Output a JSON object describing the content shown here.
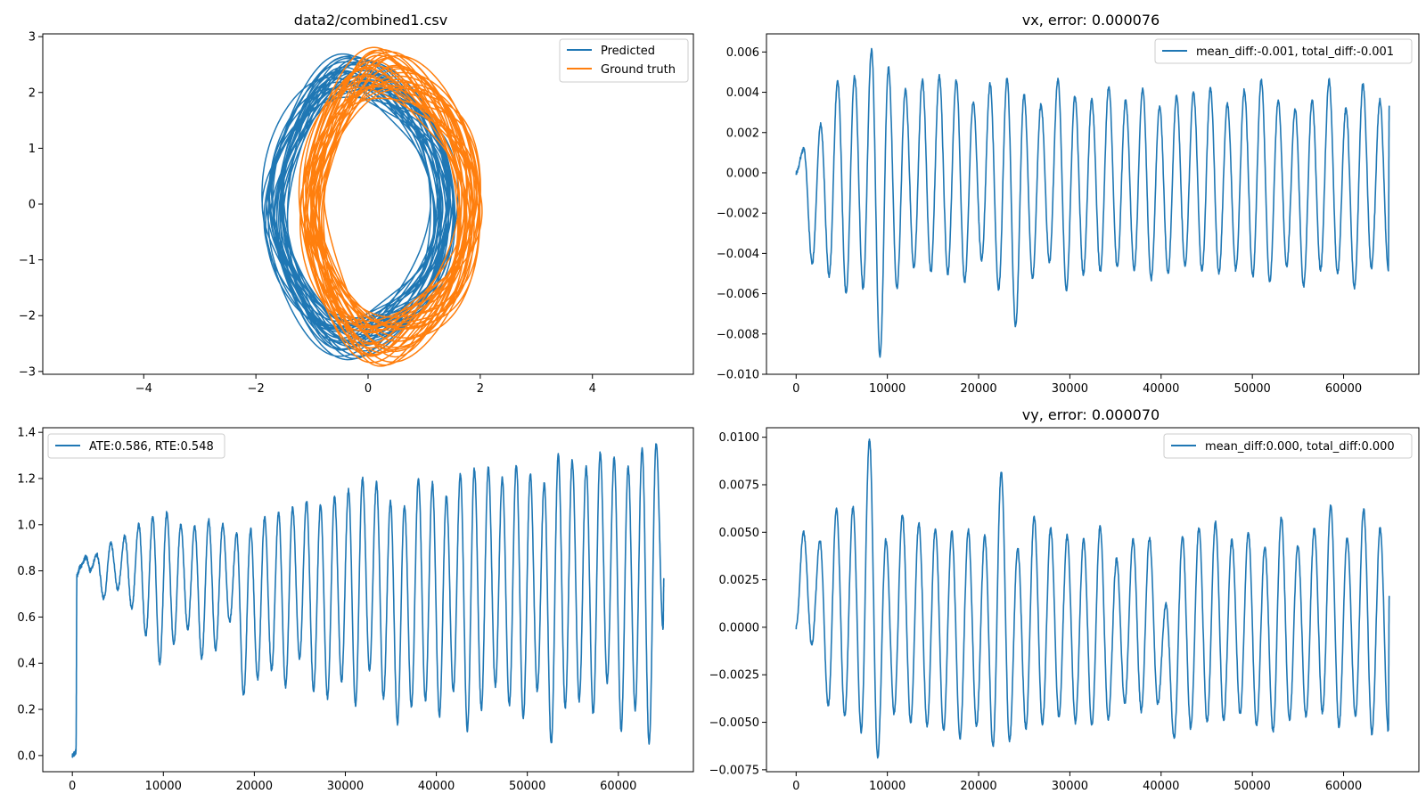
{
  "colors": {
    "blue": "#1f77b4",
    "orange": "#ff7f0e"
  },
  "chart_data": [
    {
      "type": "line",
      "title": "data2/combined1.csv",
      "xlim": [
        -5.8,
        5.8
      ],
      "ylim": [
        -3.05,
        3.05
      ],
      "xticks": [
        -4,
        -2,
        0,
        2,
        4
      ],
      "xtick_labels": [
        "−4",
        "−2",
        "0",
        "2",
        "4"
      ],
      "yticks": [
        -3,
        -2,
        -1,
        0,
        1,
        2,
        3
      ],
      "ytick_labels": [
        "−3",
        "−2",
        "−1",
        "0",
        "1",
        "2",
        "3"
      ],
      "legend_position": "top-right",
      "series": [
        {
          "name": "Predicted",
          "color": "#1f77b4",
          "kind": "trajectory",
          "loops": 30,
          "center": [
            -0.15,
            -0.05
          ],
          "rx": 1.55,
          "ry": 2.45,
          "lobe": 0.6
        },
        {
          "name": "Ground truth",
          "color": "#ff7f0e",
          "kind": "trajectory",
          "loops": 30,
          "center": [
            0.4,
            -0.05
          ],
          "rx": 1.45,
          "ry": 2.5,
          "lobe": 0.75
        }
      ]
    },
    {
      "type": "line",
      "title": "vx, error: 0.000076",
      "xlim": [
        -3250,
        68250
      ],
      "ylim": [
        -0.01,
        0.0069
      ],
      "xticks": [
        0,
        10000,
        20000,
        30000,
        40000,
        50000,
        60000
      ],
      "xtick_labels": [
        "0",
        "10000",
        "20000",
        "30000",
        "40000",
        "50000",
        "60000"
      ],
      "yticks": [
        -0.01,
        -0.008,
        -0.006,
        -0.004,
        -0.002,
        0,
        0.002,
        0.004,
        0.006
      ],
      "ytick_labels": [
        "−0.010",
        "−0.008",
        "−0.006",
        "−0.004",
        "−0.002",
        "0.000",
        "0.002",
        "0.004",
        "0.006"
      ],
      "legend_position": "top-right",
      "series": [
        {
          "name": "mean_diff:-0.001, total_diff:-0.001",
          "color": "#1f77b4",
          "x_range": [
            0,
            65000
          ],
          "start_value": 0.0,
          "end_value": 0.0033,
          "peaks": [
            0.0012,
            0.0024,
            0.0046,
            0.0048,
            0.0061,
            0.0052,
            0.0041,
            0.0046,
            0.0048,
            0.0046,
            0.0035,
            0.0044,
            0.0047,
            0.0039,
            0.0034,
            0.0046,
            0.0038,
            0.0036,
            0.0043,
            0.0036,
            0.0042,
            0.0033,
            0.0038,
            0.004,
            0.0042,
            0.0034,
            0.0041,
            0.0046,
            0.0036,
            0.0031,
            0.0036,
            0.0046,
            0.0032,
            0.0044,
            0.0036
          ],
          "troughs": [
            -0.0045,
            -0.0051,
            -0.006,
            -0.0057,
            -0.0091,
            -0.0057,
            -0.0047,
            -0.0049,
            -0.005,
            -0.0054,
            -0.0043,
            -0.0058,
            -0.0076,
            -0.0052,
            -0.0044,
            -0.0058,
            -0.005,
            -0.0049,
            -0.0047,
            -0.0048,
            -0.0053,
            -0.005,
            -0.0046,
            -0.0049,
            -0.005,
            -0.0048,
            -0.0051,
            -0.0054,
            -0.0046,
            -0.0056,
            -0.0048,
            -0.005,
            -0.0057,
            -0.0047,
            -0.0048
          ]
        }
      ]
    },
    {
      "type": "line",
      "title": "",
      "xlim": [
        -3250,
        68250
      ],
      "ylim": [
        -0.07,
        1.42
      ],
      "xticks": [
        0,
        10000,
        20000,
        30000,
        40000,
        50000,
        60000
      ],
      "xtick_labels": [
        "0",
        "10000",
        "20000",
        "30000",
        "40000",
        "50000",
        "60000"
      ],
      "yticks": [
        0,
        0.2,
        0.4,
        0.6,
        0.8,
        1.0,
        1.2,
        1.4
      ],
      "ytick_labels": [
        "0.0",
        "0.2",
        "0.4",
        "0.6",
        "0.8",
        "1.0",
        "1.2",
        "1.4"
      ],
      "legend_position": "top-left",
      "series": [
        {
          "name": "ATE:0.586, RTE:0.548",
          "color": "#1f77b4",
          "x_range": [
            0,
            65000
          ],
          "start_value": 0.0,
          "end_value": 0.76,
          "start_ramp": [
            [
              0,
              0.0
            ],
            [
              300,
              0.01
            ],
            [
              400,
              0.02
            ],
            [
              500,
              0.78
            ],
            [
              900,
              0.82
            ],
            [
              1500,
              0.86
            ],
            [
              2000,
              0.8
            ]
          ],
          "peaks": [
            0.87,
            0.92,
            0.95,
            1.0,
            1.03,
            1.05,
            1.0,
            0.99,
            1.02,
            1.0,
            0.96,
            0.98,
            1.03,
            1.05,
            1.07,
            1.1,
            1.08,
            1.12,
            1.15,
            1.2,
            1.18,
            1.1,
            1.08,
            1.2,
            1.18,
            1.12,
            1.22,
            1.24,
            1.25,
            1.2,
            1.26,
            1.22,
            1.18,
            1.3,
            1.28,
            1.25,
            1.31,
            1.29,
            1.25,
            1.33,
            1.35
          ],
          "troughs": [
            0.68,
            0.72,
            0.64,
            0.52,
            0.4,
            0.48,
            0.55,
            0.42,
            0.46,
            0.58,
            0.26,
            0.33,
            0.37,
            0.3,
            0.42,
            0.28,
            0.25,
            0.32,
            0.22,
            0.37,
            0.25,
            0.14,
            0.21,
            0.24,
            0.17,
            0.28,
            0.11,
            0.2,
            0.3,
            0.22,
            0.16,
            0.28,
            0.05,
            0.21,
            0.24,
            0.18,
            0.32,
            0.11,
            0.2,
            0.05,
            0.55
          ]
        }
      ]
    },
    {
      "type": "line",
      "title": "vy, error: 0.000070",
      "xlim": [
        -3250,
        68250
      ],
      "ylim": [
        -0.0076,
        0.0105
      ],
      "xticks": [
        0,
        10000,
        20000,
        30000,
        40000,
        50000,
        60000
      ],
      "xtick_labels": [
        "0",
        "10000",
        "20000",
        "30000",
        "40000",
        "50000",
        "60000"
      ],
      "yticks": [
        -0.0075,
        -0.005,
        -0.0025,
        0,
        0.0025,
        0.005,
        0.0075,
        0.01
      ],
      "ytick_labels": [
        "−0.0075",
        "−0.0050",
        "−0.0025",
        "0.0000",
        "0.0025",
        "0.0050",
        "0.0075",
        "0.0100"
      ],
      "legend_position": "top-right",
      "series": [
        {
          "name": "mean_diff:0.000, total_diff:0.000",
          "color": "#1f77b4",
          "x_range": [
            0,
            65000
          ],
          "start_value": 0.0,
          "end_value": 0.0016,
          "peaks": [
            0.005,
            0.0045,
            0.0062,
            0.0063,
            0.0099,
            0.0046,
            0.0059,
            0.0055,
            0.0052,
            0.005,
            0.0051,
            0.0048,
            0.0082,
            0.0042,
            0.0058,
            0.0052,
            0.0048,
            0.0046,
            0.0053,
            0.0036,
            0.0046,
            0.0047,
            0.0012,
            0.0048,
            0.0052,
            0.0055,
            0.0046,
            0.005,
            0.0042,
            0.0058,
            0.0043,
            0.0052,
            0.0064,
            0.0047,
            0.0062,
            0.0052
          ],
          "troughs": [
            -0.0009,
            -0.0041,
            -0.0047,
            -0.0055,
            -0.0068,
            -0.0045,
            -0.005,
            -0.0052,
            -0.0054,
            -0.0058,
            -0.0052,
            -0.0063,
            -0.006,
            -0.0053,
            -0.0051,
            -0.0047,
            -0.005,
            -0.0052,
            -0.0048,
            -0.004,
            -0.0044,
            -0.004,
            -0.0058,
            -0.0053,
            -0.005,
            -0.0049,
            -0.0045,
            -0.0052,
            -0.0055,
            -0.0049,
            -0.0047,
            -0.0045,
            -0.0052,
            -0.0047,
            -0.0056,
            -0.0055
          ]
        }
      ]
    }
  ]
}
